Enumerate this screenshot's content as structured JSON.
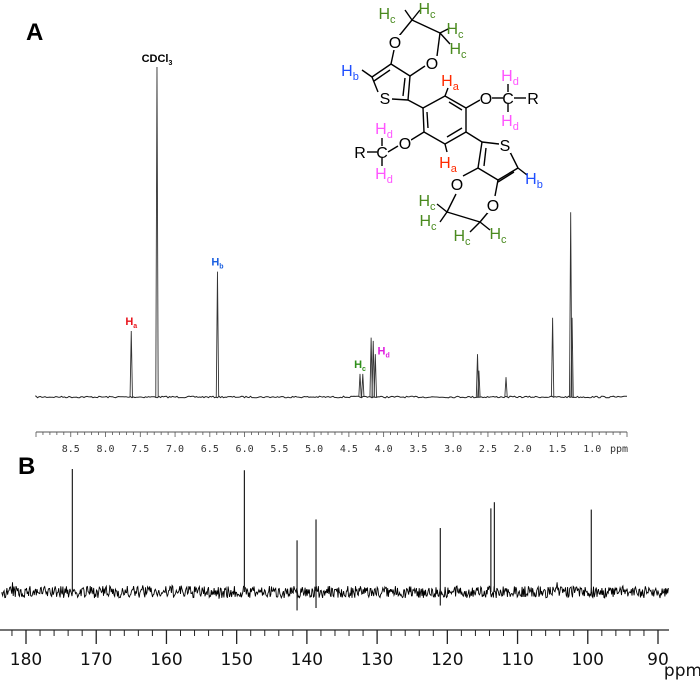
{
  "colors": {
    "Ha": "#e8141c",
    "Hb": "#1a5fe0",
    "Hc": "#2f8f1a",
    "Hd": "#e020e0",
    "struct_Ha": "#ff2a00",
    "struct_Hb": "#1f4fff",
    "struct_Hc": "#4a8a1f",
    "struct_Hd": "#ff55ff",
    "spectrum": "#111111"
  },
  "structure": {
    "H": "H",
    "O": "O",
    "S": "S",
    "R": "R",
    "C": "C",
    "sub_a": "a",
    "sub_b": "b",
    "sub_c": "c",
    "sub_d": "d"
  },
  "chart_data": [
    {
      "panel_label": "A",
      "type": "line",
      "xlabel": "ppm",
      "xlim": [
        9.0,
        0.5
      ],
      "x_reversed": true,
      "xticks": [
        "8.5",
        "8.0",
        "7.5",
        "7.0",
        "6.5",
        "6.0",
        "5.5",
        "5.0",
        "4.5",
        "4.0",
        "3.5",
        "3.0",
        "2.5",
        "2.0",
        "1.5",
        "1.0"
      ],
      "grid": false,
      "peaks": [
        {
          "ppm": 7.63,
          "intensity": 20
        },
        {
          "ppm": 7.26,
          "intensity": 100
        },
        {
          "ppm": 6.39,
          "intensity": 38
        },
        {
          "ppm": 4.34,
          "intensity": 7
        },
        {
          "ppm": 4.3,
          "intensity": 7
        },
        {
          "ppm": 4.18,
          "intensity": 18
        },
        {
          "ppm": 4.15,
          "intensity": 17
        },
        {
          "ppm": 4.12,
          "intensity": 13
        },
        {
          "ppm": 2.65,
          "intensity": 13
        },
        {
          "ppm": 2.63,
          "intensity": 8
        },
        {
          "ppm": 2.24,
          "intensity": 6
        },
        {
          "ppm": 1.57,
          "intensity": 24
        },
        {
          "ppm": 1.31,
          "intensity": 56
        },
        {
          "ppm": 1.29,
          "intensity": 24
        }
      ],
      "annotations": [
        {
          "main": "CDCl",
          "sub": "3",
          "ppm": 7.26,
          "color": "#000000",
          "intensity": 100
        },
        {
          "main": "H",
          "sub": "a",
          "ppm": 7.63,
          "color": "Ha",
          "intensity": 20
        },
        {
          "main": "H",
          "sub": "b",
          "ppm": 6.39,
          "color": "Hb",
          "intensity": 38
        },
        {
          "main": "H",
          "sub": "c",
          "ppm": 4.34,
          "color": "Hc",
          "intensity": 7
        },
        {
          "main": "H",
          "sub": "d",
          "ppm": 4.0,
          "color": "Hd",
          "intensity": 11
        }
      ]
    },
    {
      "panel_label": "B",
      "type": "line",
      "xlabel": "ppm",
      "xlim": [
        183.7,
        88.5
      ],
      "x_reversed": true,
      "xticks": [
        "180",
        "170",
        "160",
        "150",
        "140",
        "130",
        "120",
        "110",
        "100",
        "90"
      ],
      "grid": false,
      "peaks": [
        {
          "ppm": 173.4,
          "intensity": 100
        },
        {
          "ppm": 148.9,
          "intensity": 99
        },
        {
          "ppm": 141.4,
          "intensity": 42,
          "negative": -15
        },
        {
          "ppm": 138.7,
          "intensity": 59,
          "negative": -13
        },
        {
          "ppm": 121.0,
          "intensity": 52,
          "negative": -11
        },
        {
          "ppm": 113.8,
          "intensity": 68
        },
        {
          "ppm": 113.3,
          "intensity": 73
        },
        {
          "ppm": 99.5,
          "intensity": 67
        }
      ]
    }
  ]
}
